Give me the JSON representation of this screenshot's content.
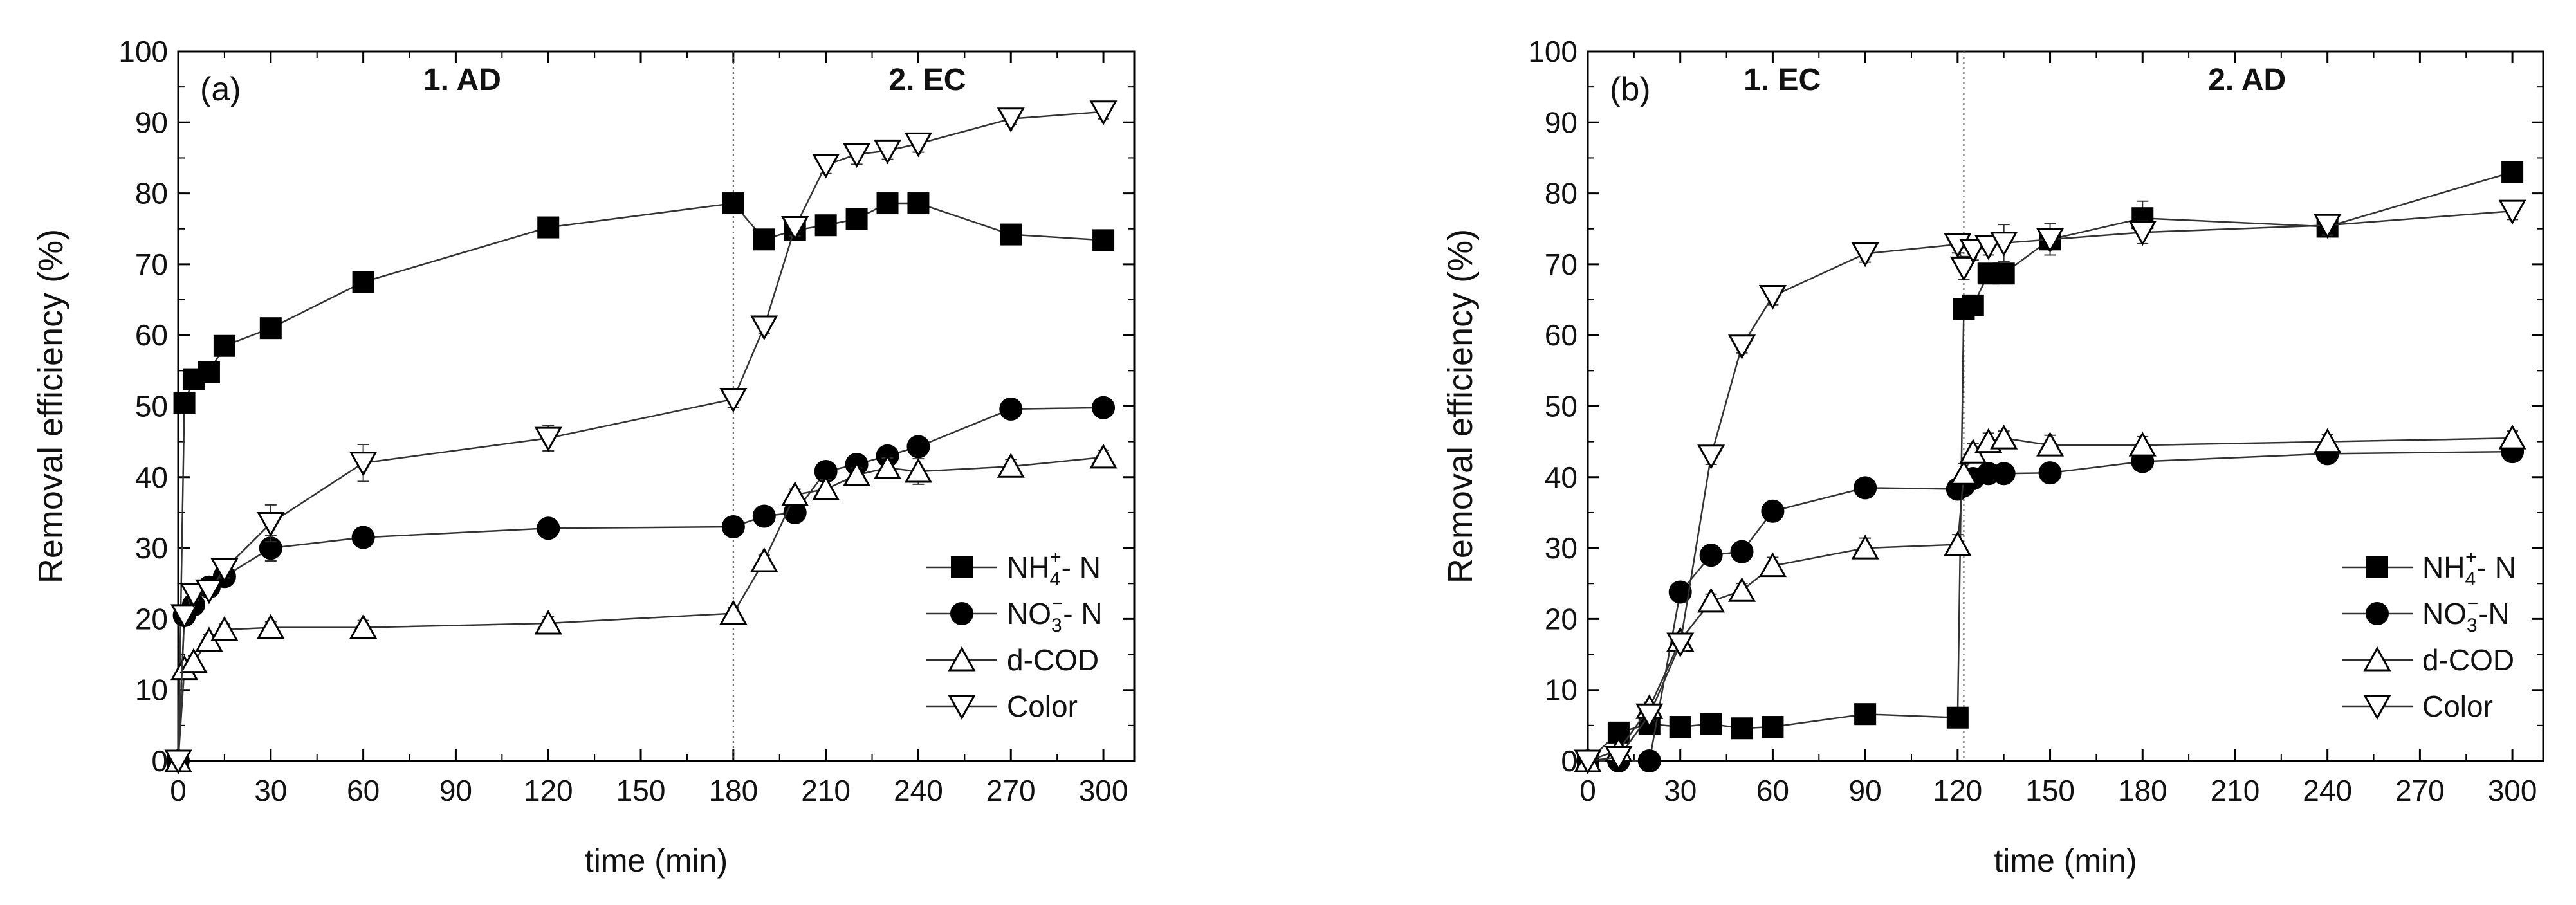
{
  "chart_data": [
    {
      "panel_label": "(a)",
      "type": "line",
      "phase_labels": [
        "1. AD",
        "2. EC"
      ],
      "phase_divider_x": 180,
      "xlabel": "time (min)",
      "ylabel": "Removal efficiency (%)",
      "xlim": [
        0,
        310
      ],
      "ylim": [
        0,
        100
      ],
      "xticks": [
        0,
        30,
        60,
        90,
        120,
        150,
        180,
        210,
        240,
        270,
        300
      ],
      "yticks": [
        0,
        10,
        20,
        30,
        40,
        50,
        60,
        70,
        80,
        90,
        100
      ],
      "legend_position": "bottom-right",
      "series": [
        {
          "name": "NH4+-N",
          "label_base": "NH",
          "label_sub": "4",
          "label_sup": "+",
          "label_tail": "- N",
          "marker": "square-filled",
          "x": [
            0,
            2,
            5,
            10,
            15,
            30,
            60,
            120,
            180,
            190,
            200,
            210,
            220,
            230,
            240,
            270,
            300
          ],
          "y": [
            0,
            50.5,
            53.8,
            54.8,
            58.5,
            61.0,
            67.5,
            75.2,
            78.6,
            73.5,
            74.8,
            75.5,
            76.4,
            78.6,
            78.6,
            74.2,
            73.4
          ],
          "err": [
            0,
            0.8,
            0.6,
            0.8,
            1.4,
            0.8,
            0.6,
            0.8,
            0.6,
            0.6,
            0.6,
            0.6,
            0.6,
            0.6,
            0.6,
            0.6,
            0.6
          ]
        },
        {
          "name": "NO3--N",
          "label_base": "NO",
          "label_sub": "3",
          "label_sup": "−",
          "label_tail": "- N",
          "marker": "circle-filled",
          "x": [
            0,
            2,
            5,
            10,
            15,
            30,
            60,
            120,
            180,
            190,
            200,
            210,
            220,
            230,
            240,
            270,
            300
          ],
          "y": [
            0,
            20.5,
            22.0,
            24.5,
            26.0,
            30.0,
            31.5,
            32.8,
            33.0,
            34.5,
            35.0,
            40.8,
            41.8,
            43.0,
            44.3,
            49.6,
            49.8
          ],
          "err": [
            0,
            0.8,
            0.8,
            0.8,
            1.2,
            1.8,
            0.8,
            1.2,
            0.6,
            0.6,
            0.6,
            0.6,
            0.6,
            0.6,
            0.6,
            0.6,
            0.6
          ]
        },
        {
          "name": "d-COD",
          "label_base": "d-COD",
          "label_sub": "",
          "label_sup": "",
          "label_tail": "",
          "marker": "triangle-up-open",
          "x": [
            0,
            2,
            5,
            10,
            15,
            30,
            60,
            120,
            180,
            190,
            200,
            210,
            220,
            230,
            240,
            270,
            300
          ],
          "y": [
            0,
            13.0,
            14.0,
            17.0,
            18.5,
            18.8,
            18.8,
            19.4,
            20.8,
            28.2,
            37.5,
            38.3,
            40.3,
            41.3,
            40.8,
            41.5,
            42.8
          ],
          "err": [
            0,
            0.8,
            0.8,
            0.8,
            0.8,
            0.8,
            1.0,
            1.0,
            0.8,
            0.8,
            0.8,
            1.4,
            1.0,
            1.4,
            1.8,
            1.0,
            1.0
          ]
        },
        {
          "name": "Color",
          "label_base": "Color",
          "label_sub": "",
          "label_sup": "",
          "label_tail": "",
          "marker": "triangle-down-open",
          "x": [
            0,
            2,
            5,
            10,
            15,
            30,
            60,
            120,
            180,
            190,
            200,
            210,
            220,
            230,
            240,
            270,
            300
          ],
          "y": [
            0,
            20.5,
            23.5,
            24.0,
            27.0,
            33.5,
            42.0,
            45.5,
            51.0,
            61.2,
            75.2,
            84.0,
            85.5,
            86.0,
            87.0,
            90.5,
            91.5
          ],
          "err": [
            0,
            0.8,
            0.8,
            0.8,
            1.2,
            2.6,
            2.6,
            1.8,
            1.2,
            1.0,
            1.2,
            1.2,
            1.4,
            1.2,
            1.2,
            0.8,
            1.0
          ]
        }
      ]
    },
    {
      "panel_label": "(b)",
      "type": "line",
      "phase_labels": [
        "1. EC",
        "2. AD"
      ],
      "phase_divider_x": 122,
      "xlabel": "time (min)",
      "ylabel": "Removal efficiency (%)",
      "xlim": [
        0,
        310
      ],
      "ylim": [
        0,
        100
      ],
      "xticks": [
        0,
        30,
        60,
        90,
        120,
        150,
        180,
        210,
        240,
        270,
        300
      ],
      "yticks": [
        0,
        10,
        20,
        30,
        40,
        50,
        60,
        70,
        80,
        90,
        100
      ],
      "legend_position": "bottom-right",
      "series": [
        {
          "name": "NH4+-N",
          "label_base": "NH",
          "label_sub": "4",
          "label_sup": "+",
          "label_tail": "- N",
          "marker": "square-filled",
          "x": [
            0,
            10,
            20,
            30,
            40,
            50,
            60,
            90,
            120,
            122,
            125,
            130,
            135,
            150,
            180,
            240,
            300
          ],
          "y": [
            0,
            4.0,
            5.2,
            4.8,
            5.2,
            4.6,
            4.8,
            6.6,
            6.1,
            63.7,
            64.2,
            68.7,
            68.7,
            73.5,
            76.5,
            75.3,
            83.0
          ],
          "err": [
            0,
            0.5,
            0.5,
            0.5,
            0.5,
            0.5,
            0.5,
            0.5,
            0.5,
            0.8,
            0.8,
            0.8,
            0.8,
            1.0,
            2.4,
            1.0,
            0.6
          ]
        },
        {
          "name": "NO3--N",
          "label_base": "NO",
          "label_sub": "3",
          "label_sup": "−",
          "label_tail": "-N",
          "marker": "circle-filled",
          "x": [
            0,
            10,
            20,
            30,
            40,
            50,
            60,
            90,
            120,
            122,
            125,
            130,
            135,
            150,
            180,
            240,
            300
          ],
          "y": [
            0,
            0,
            0,
            23.8,
            29.0,
            29.5,
            35.2,
            38.5,
            38.3,
            38.8,
            39.8,
            40.5,
            40.5,
            40.6,
            42.2,
            43.3,
            43.6
          ],
          "err": [
            0,
            0.5,
            0.5,
            0.8,
            0.8,
            0.8,
            0.8,
            0.8,
            0.8,
            0.8,
            0.8,
            0.8,
            0.8,
            0.8,
            1.2,
            1.0,
            1.0
          ]
        },
        {
          "name": "d-COD",
          "label_base": "d-COD",
          "label_sub": "",
          "label_sup": "",
          "label_tail": "",
          "marker": "triangle-up-open",
          "x": [
            0,
            10,
            20,
            30,
            40,
            50,
            60,
            90,
            120,
            122,
            125,
            130,
            135,
            150,
            180,
            240,
            300
          ],
          "y": [
            0,
            1.5,
            7.5,
            17.0,
            22.5,
            24.0,
            27.5,
            30.0,
            30.5,
            40.5,
            43.5,
            45.0,
            45.5,
            44.5,
            44.5,
            45.0,
            45.5
          ],
          "err": [
            0,
            0.5,
            0.8,
            1.0,
            1.0,
            1.0,
            1.2,
            1.4,
            1.4,
            1.4,
            1.2,
            1.2,
            1.0,
            1.4,
            1.2,
            1.0,
            1.0
          ]
        },
        {
          "name": "Color",
          "label_base": "Color",
          "label_sub": "",
          "label_sup": "",
          "label_tail": "",
          "marker": "triangle-down-open",
          "x": [
            0,
            10,
            20,
            30,
            40,
            50,
            60,
            90,
            120,
            122,
            125,
            130,
            135,
            150,
            180,
            240,
            300
          ],
          "y": [
            0,
            0.5,
            6.5,
            16.5,
            43.0,
            58.5,
            65.5,
            71.5,
            72.8,
            69.5,
            72.0,
            72.5,
            73.0,
            73.5,
            74.5,
            75.5,
            77.5
          ],
          "err": [
            0,
            0.5,
            0.8,
            1.0,
            1.2,
            1.0,
            1.2,
            1.2,
            1.2,
            1.6,
            1.4,
            1.2,
            2.6,
            2.2,
            1.6,
            1.4,
            1.2
          ]
        }
      ]
    }
  ]
}
